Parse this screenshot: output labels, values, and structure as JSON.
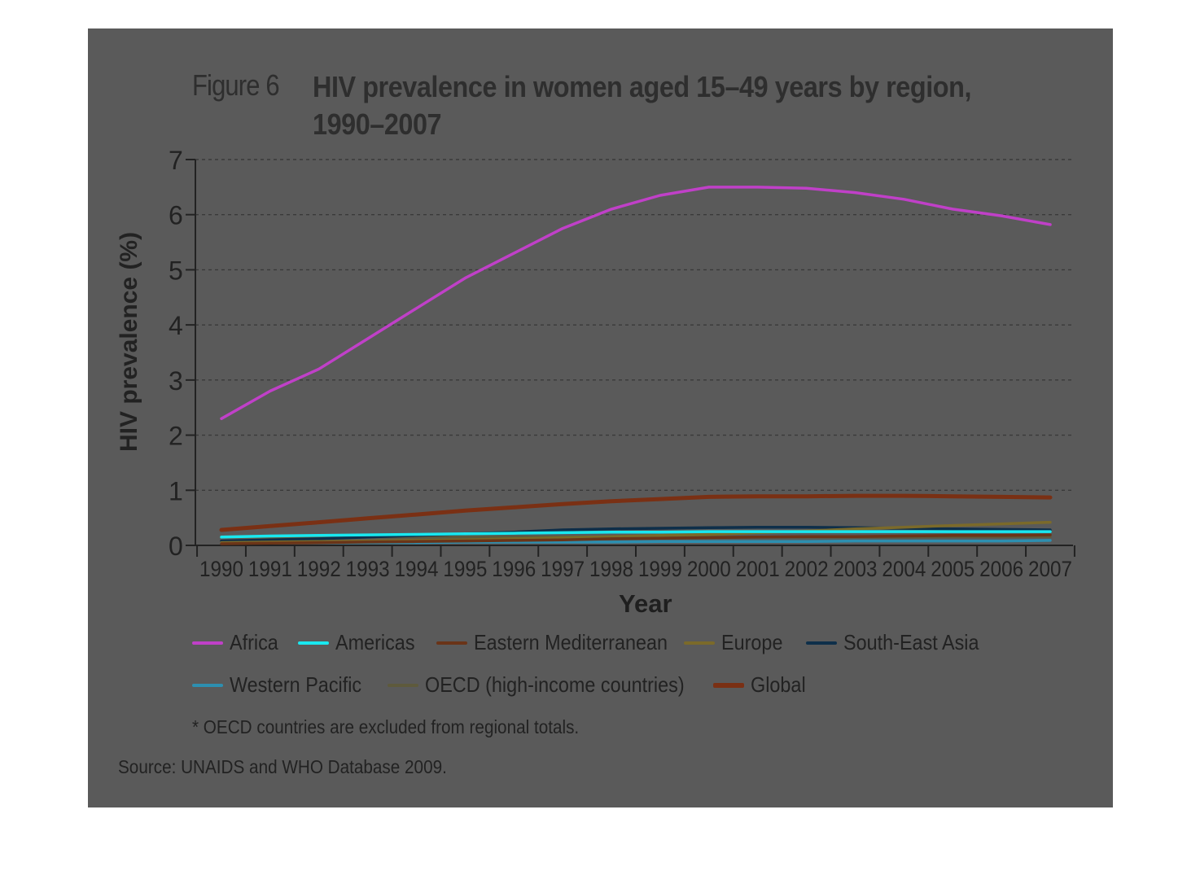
{
  "figure": {
    "label": "Figure 6",
    "title": "HIV prevalence in women aged 15–49 years by region, 1990–2007"
  },
  "footnote": "* OECD countries are excluded from regional totals.",
  "source": "Source: UNAIDS and WHO Database 2009.",
  "chart_data": {
    "type": "line",
    "title": "HIV prevalence in women aged 15–49 years by region, 1990–2007",
    "xlabel": "Year",
    "ylabel": "HIV prevalence (%)",
    "ylim": [
      0,
      7
    ],
    "yticks": [
      0,
      1,
      2,
      3,
      4,
      5,
      6,
      7
    ],
    "grid": "horizontal dashed",
    "legend_position": "bottom",
    "x": [
      "1990",
      "1991",
      "1992",
      "1993",
      "1994",
      "1995",
      "1996",
      "1997",
      "1998",
      "1999",
      "2000",
      "2001",
      "2002",
      "2003",
      "2004",
      "2005",
      "2006",
      "2007"
    ],
    "series": [
      {
        "name": "Africa",
        "color": "#c040c8",
        "values": [
          2.3,
          2.8,
          3.2,
          3.75,
          4.3,
          4.85,
          5.3,
          5.75,
          6.1,
          6.35,
          6.5,
          6.5,
          6.48,
          6.4,
          6.28,
          6.1,
          5.98,
          5.82
        ]
      },
      {
        "name": "Americas",
        "color": "#19e8f0",
        "values": [
          0.15,
          0.17,
          0.18,
          0.19,
          0.2,
          0.21,
          0.22,
          0.23,
          0.24,
          0.24,
          0.25,
          0.25,
          0.25,
          0.25,
          0.25,
          0.25,
          0.25,
          0.25
        ]
      },
      {
        "name": "Eastern Mediterranean",
        "color": "#6a3418",
        "values": [
          0.03,
          0.04,
          0.05,
          0.06,
          0.07,
          0.08,
          0.09,
          0.1,
          0.12,
          0.13,
          0.14,
          0.15,
          0.16,
          0.16,
          0.17,
          0.18,
          0.18,
          0.19
        ]
      },
      {
        "name": "Europe",
        "color": "#7b6a2a",
        "values": [
          0.05,
          0.06,
          0.07,
          0.08,
          0.09,
          0.1,
          0.12,
          0.14,
          0.16,
          0.18,
          0.2,
          0.23,
          0.26,
          0.3,
          0.33,
          0.36,
          0.39,
          0.42
        ]
      },
      {
        "name": "South-East Asia",
        "color": "#0e2f4a",
        "values": [
          0.08,
          0.1,
          0.12,
          0.15,
          0.18,
          0.21,
          0.24,
          0.28,
          0.3,
          0.31,
          0.32,
          0.33,
          0.33,
          0.32,
          0.31,
          0.3,
          0.29,
          0.28
        ]
      },
      {
        "name": "Western Pacific",
        "color": "#2d8fb0",
        "values": [
          0.05,
          0.05,
          0.05,
          0.05,
          0.05,
          0.06,
          0.06,
          0.06,
          0.06,
          0.07,
          0.07,
          0.07,
          0.07,
          0.08,
          0.08,
          0.08,
          0.08,
          0.09
        ]
      },
      {
        "name": "OECD (high-income countries)",
        "color": "#5e5a3c",
        "values": [
          0.15,
          0.15,
          0.15,
          0.15,
          0.15,
          0.15,
          0.15,
          0.15,
          0.15,
          0.15,
          0.15,
          0.15,
          0.15,
          0.15,
          0.15,
          0.16,
          0.16,
          0.16
        ]
      },
      {
        "name": "Global",
        "color": "#7a3014",
        "values": [
          0.28,
          0.35,
          0.42,
          0.49,
          0.56,
          0.63,
          0.69,
          0.75,
          0.8,
          0.84,
          0.88,
          0.89,
          0.89,
          0.9,
          0.9,
          0.89,
          0.88,
          0.87
        ]
      }
    ]
  }
}
